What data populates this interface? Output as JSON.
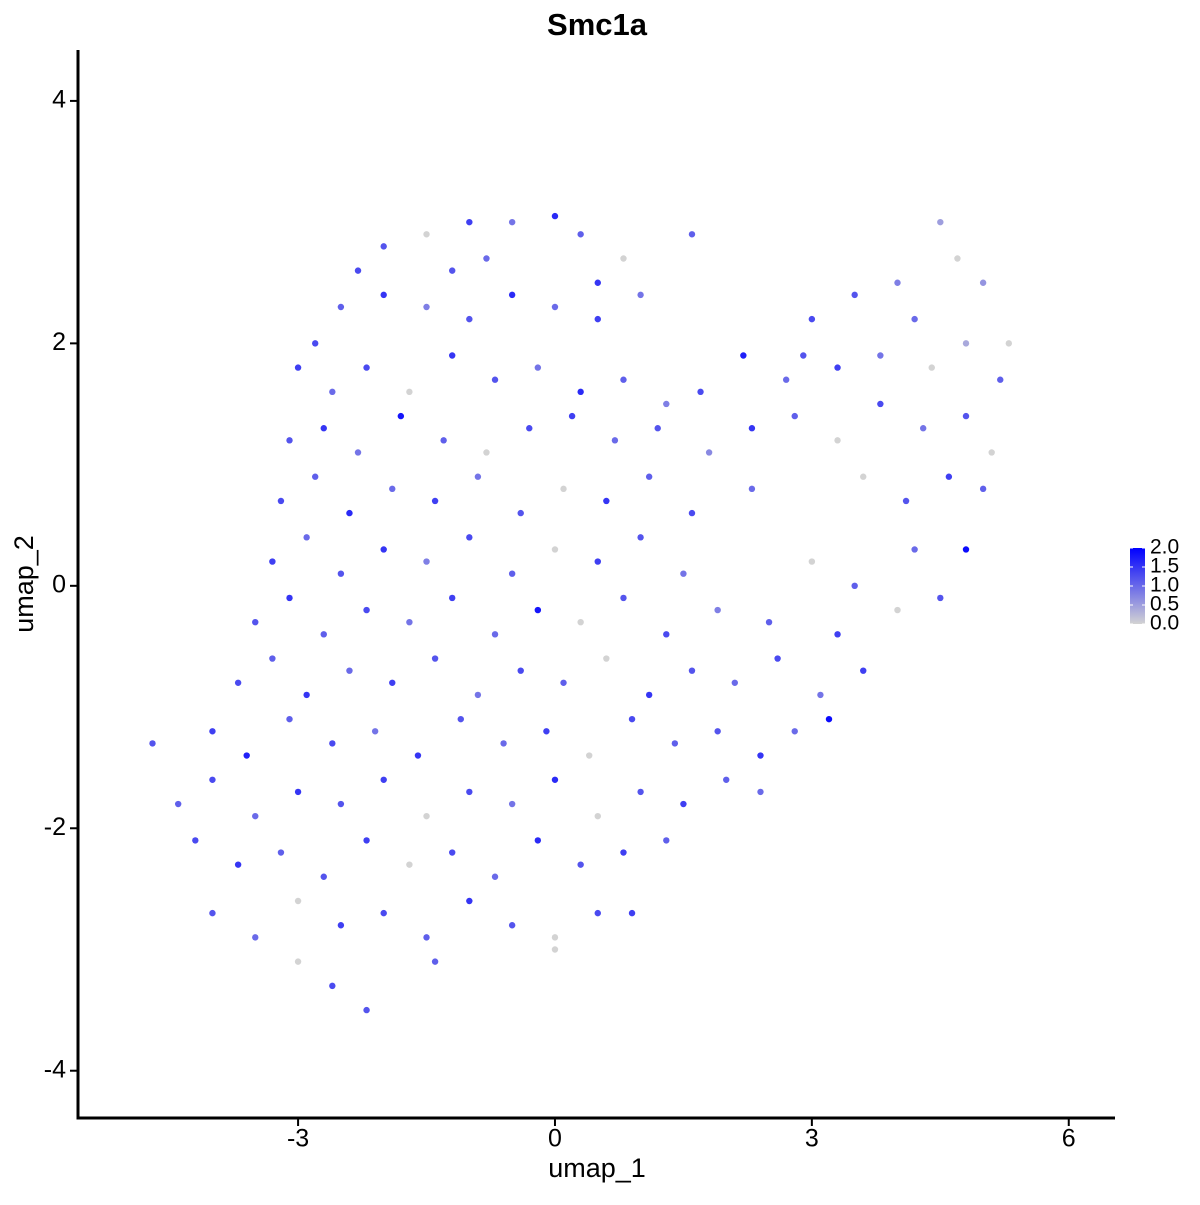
{
  "chart_data": {
    "type": "scatter",
    "title": "Smc1a",
    "x_label": "umap_1",
    "y_label": "umap_2",
    "xlim": [
      -5.57,
      6.54
    ],
    "ylim": [
      -4.39,
      4.42
    ],
    "xticks": [
      -3,
      0,
      3,
      6
    ],
    "yticks": [
      -4,
      -2,
      0,
      2,
      4
    ],
    "color_low": "#d3d3d3",
    "color_high": "#0000ff",
    "colorbar_lim": [
      0,
      2
    ],
    "colorbar_ticks": [
      {
        "value": 0,
        "label": "0.0"
      },
      {
        "value": 0.5,
        "label": "0.5"
      },
      {
        "value": 1,
        "label": "1.0"
      },
      {
        "value": 1.5,
        "label": "1.5"
      },
      {
        "value": 2,
        "label": "2.0"
      }
    ],
    "x": [
      -2.0,
      -1.5,
      -1.0,
      -0.5,
      0.0,
      0.3,
      0.8,
      -2.3,
      -0.8,
      0.5,
      -2.8,
      -2.5,
      -2.0,
      -1.5,
      -1.0,
      -0.5,
      0.0,
      0.5,
      1.0,
      -1.2,
      -3.0,
      -2.6,
      -2.2,
      -1.7,
      -1.2,
      -0.7,
      -0.2,
      0.3,
      0.8,
      1.3,
      1.7,
      2.2,
      2.7,
      -3.1,
      -2.7,
      -2.3,
      -1.8,
      -1.3,
      -0.8,
      -0.3,
      0.2,
      0.7,
      1.2,
      1.8,
      2.3,
      2.8,
      3.3,
      3.8,
      4.3,
      4.8,
      5.1,
      -3.2,
      -2.8,
      -2.4,
      -1.9,
      -1.4,
      -0.9,
      -0.4,
      0.1,
      0.6,
      1.1,
      1.6,
      2.3,
      3.6,
      4.1,
      4.6,
      5.0,
      -3.3,
      -2.9,
      -2.5,
      -2.0,
      -1.5,
      -1.0,
      -0.5,
      0.0,
      0.5,
      1.0,
      1.5,
      3.0,
      4.2,
      4.8,
      3.5,
      -3.5,
      -3.1,
      -2.7,
      -2.2,
      -1.7,
      -1.2,
      -0.7,
      -0.2,
      0.3,
      0.8,
      1.3,
      1.9,
      2.5,
      3.3,
      4.0,
      4.5,
      -3.7,
      -3.3,
      -2.9,
      -2.4,
      -1.9,
      -1.4,
      -0.9,
      -0.4,
      0.1,
      0.6,
      1.1,
      1.6,
      2.1,
      2.6,
      3.1,
      3.6,
      -4.7,
      -4.0,
      -3.6,
      -3.1,
      -2.6,
      -2.1,
      -1.6,
      -1.1,
      -0.6,
      -0.1,
      0.4,
      0.9,
      1.4,
      1.9,
      2.4,
      2.8,
      3.2,
      -4.4,
      -4.0,
      -3.5,
      -3.0,
      -2.5,
      -2.0,
      -1.5,
      -1.0,
      -0.5,
      0.0,
      0.5,
      1.0,
      1.5,
      2.0,
      2.4,
      -4.2,
      -3.7,
      -3.2,
      -2.7,
      -2.2,
      -1.7,
      -1.2,
      -0.7,
      -0.2,
      0.3,
      0.8,
      1.3,
      -4.0,
      -3.5,
      -3.0,
      -2.5,
      -2.0,
      -1.5,
      -1.0,
      -0.5,
      0.0,
      0.5,
      0.9,
      -3.0,
      -2.6,
      -2.2,
      -1.4,
      0.0,
      3.5,
      4.0,
      4.5,
      4.7,
      5.0,
      5.3,
      3.0,
      4.2,
      4.8,
      5.2,
      3.3,
      3.8,
      4.4,
      2.9,
      1.6
    ],
    "values": [
      2.8,
      2.9,
      3.0,
      3.0,
      3.05,
      2.9,
      2.7,
      2.6,
      2.7,
      2.5,
      2.0,
      2.3,
      2.4,
      2.3,
      2.2,
      2.4,
      2.3,
      2.2,
      2.4,
      2.6,
      1.8,
      1.6,
      1.8,
      1.6,
      1.9,
      1.7,
      1.8,
      1.6,
      1.7,
      1.5,
      1.6,
      1.9,
      1.7,
      1.2,
      1.3,
      1.1,
      1.4,
      1.2,
      1.1,
      1.3,
      1.4,
      1.2,
      1.3,
      1.1,
      1.3,
      1.4,
      1.2,
      1.5,
      1.3,
      1.4,
      1.1,
      0.7,
      0.9,
      0.6,
      0.8,
      0.7,
      0.9,
      0.6,
      0.8,
      0.7,
      0.9,
      0.6,
      0.8,
      0.9,
      0.7,
      0.9,
      0.8,
      0.2,
      0.4,
      0.1,
      0.3,
      0.2,
      0.4,
      0.1,
      0.3,
      0.2,
      0.4,
      0.1,
      0.2,
      0.3,
      0.3,
      0.0,
      -0.3,
      -0.1,
      -0.4,
      -0.2,
      -0.3,
      -0.1,
      -0.4,
      -0.2,
      -0.3,
      -0.1,
      -0.4,
      -0.2,
      -0.3,
      -0.4,
      -0.2,
      -0.1,
      -0.8,
      -0.6,
      -0.9,
      -0.7,
      -0.8,
      -0.6,
      -0.9,
      -0.7,
      -0.8,
      -0.6,
      -0.9,
      -0.7,
      -0.8,
      -0.6,
      -0.9,
      -0.7,
      -1.3,
      -1.2,
      -1.4,
      -1.1,
      -1.3,
      -1.2,
      -1.4,
      -1.1,
      -1.3,
      -1.2,
      -1.4,
      -1.1,
      -1.3,
      -1.2,
      -1.4,
      -1.2,
      -1.1,
      -1.8,
      -1.6,
      -1.9,
      -1.7,
      -1.8,
      -1.6,
      -1.9,
      -1.7,
      -1.8,
      -1.6,
      -1.9,
      -1.7,
      -1.8,
      -1.6,
      -1.7,
      -2.1,
      -2.3,
      -2.2,
      -2.4,
      -2.1,
      -2.3,
      -2.2,
      -2.4,
      -2.1,
      -2.3,
      -2.2,
      -2.1,
      -2.7,
      -2.9,
      -2.6,
      -2.8,
      -2.7,
      -2.9,
      -2.6,
      -2.8,
      -2.9,
      -2.7,
      -2.7,
      -3.1,
      -3.3,
      -3.5,
      -3.1,
      -3.0,
      2.4,
      2.5,
      3.0,
      2.7,
      2.5,
      2.0,
      2.2,
      2.2,
      2.0,
      1.7,
      1.8,
      1.9,
      1.8,
      1.9,
      2.9
    ],
    "expression": [
      1.2,
      0,
      1.4,
      0.9,
      1.6,
      1.1,
      0,
      1.3,
      1.0,
      1.5,
      1.3,
      1.1,
      1.5,
      0.8,
      1.2,
      1.6,
      1.0,
      1.4,
      0.9,
      1.2,
      1.4,
      1.0,
      1.3,
      0,
      1.5,
      1.2,
      0.9,
      1.6,
      1.1,
      0.8,
      1.3,
      1.7,
      1.0,
      1.2,
      1.5,
      0.9,
      1.8,
      1.1,
      0,
      1.3,
      1.4,
      1.0,
      1.2,
      0.7,
      1.5,
      1.1,
      0,
      1.3,
      0.9,
      1.2,
      0,
      1.3,
      1.1,
      1.6,
      1.0,
      1.4,
      0.9,
      1.2,
      0,
      1.5,
      1.1,
      1.3,
      1.0,
      0,
      1.2,
      1.4,
      1.1,
      1.4,
      1.0,
      1.2,
      1.5,
      0.8,
      1.3,
      1.1,
      0,
      1.4,
      1.2,
      0.9,
      0,
      1.0,
      1.9,
      1.1,
      1.2,
      1.5,
      1.1,
      1.3,
      0.9,
      1.4,
      1.0,
      1.8,
      0,
      1.2,
      1.3,
      0.8,
      1.1,
      1.4,
      0,
      1.2,
      1.3,
      1.1,
      1.5,
      1.0,
      1.4,
      1.2,
      0.9,
      1.3,
      1.1,
      0,
      1.5,
      1.2,
      1.0,
      1.3,
      0.9,
      1.4,
      1.2,
      1.4,
      1.7,
      1.1,
      1.3,
      0.9,
      1.5,
      1.2,
      1.0,
      1.4,
      0,
      1.3,
      1.1,
      1.2,
      1.5,
      1.0,
      1.9,
      1.1,
      1.3,
      1.0,
      1.5,
      1.2,
      1.4,
      0,
      1.3,
      0.9,
      1.6,
      0,
      1.2,
      1.4,
      1.1,
      1.0,
      1.3,
      1.5,
      1.1,
      1.2,
      1.4,
      0,
      1.3,
      1.0,
      1.6,
      1.2,
      1.4,
      1.1,
      1.2,
      1.0,
      0,
      1.4,
      1.3,
      1.1,
      1.5,
      1.2,
      0,
      1.3,
      1.4,
      0,
      1.3,
      1.2,
      1.1,
      0,
      1.2,
      0.8,
      0.5,
      0,
      0.6,
      0,
      1.3,
      1.0,
      0.4,
      1.1,
      1.4,
      0.9,
      0,
      1.2,
      1.1
    ]
  }
}
